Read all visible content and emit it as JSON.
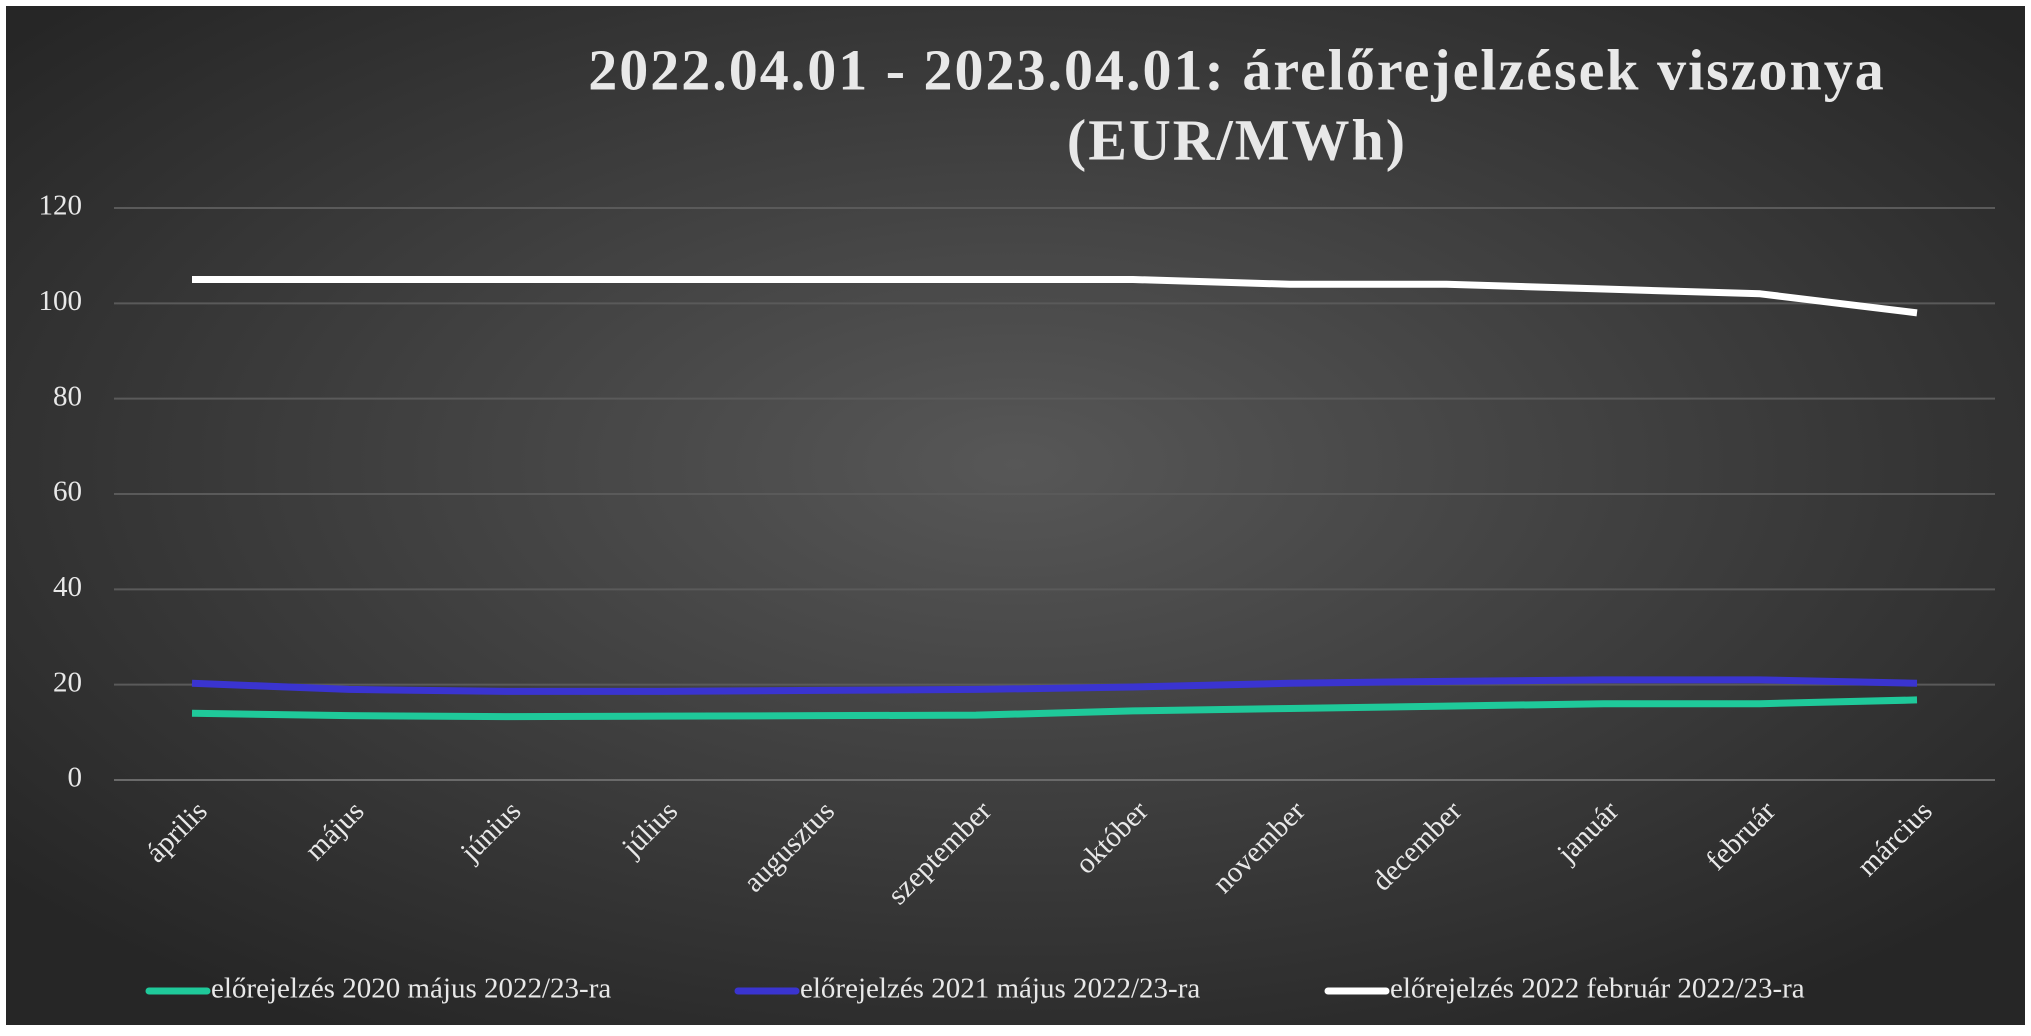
{
  "chart_data": {
    "type": "line",
    "title": [
      "2022.04.01 - 2023.04.01: árelőrejelzések viszonya",
      "(EUR/MWh)"
    ],
    "categories": [
      "április",
      "május",
      "június",
      "július",
      "augusztus",
      "szeptember",
      "október",
      "november",
      "december",
      "január",
      "február",
      "március"
    ],
    "series": [
      {
        "name": "előrejelzés 2020 május 2022/23-ra",
        "color": "#1fc99a",
        "values": [
          14,
          13.5,
          13.3,
          13.4,
          13.5,
          13.6,
          14.5,
          15,
          15.5,
          16,
          16,
          16.8
        ]
      },
      {
        "name": "előrejelzés 2021 május 2022/23-ra",
        "color": "#3a34d0",
        "values": [
          20.3,
          19,
          18.6,
          18.6,
          18.8,
          19,
          19.5,
          20.3,
          20.7,
          21,
          21,
          20.3
        ]
      },
      {
        "name": "előrejelzés 2022 február 2022/23-ra",
        "color": "#ffffff",
        "values": [
          105,
          105,
          105,
          105,
          105,
          105,
          105,
          104,
          104,
          103,
          102,
          98
        ]
      }
    ],
    "ylim": [
      0,
      120
    ],
    "yticks": [
      0,
      20,
      40,
      60,
      80,
      100,
      120
    ],
    "grid": true,
    "legend": "bottom"
  }
}
